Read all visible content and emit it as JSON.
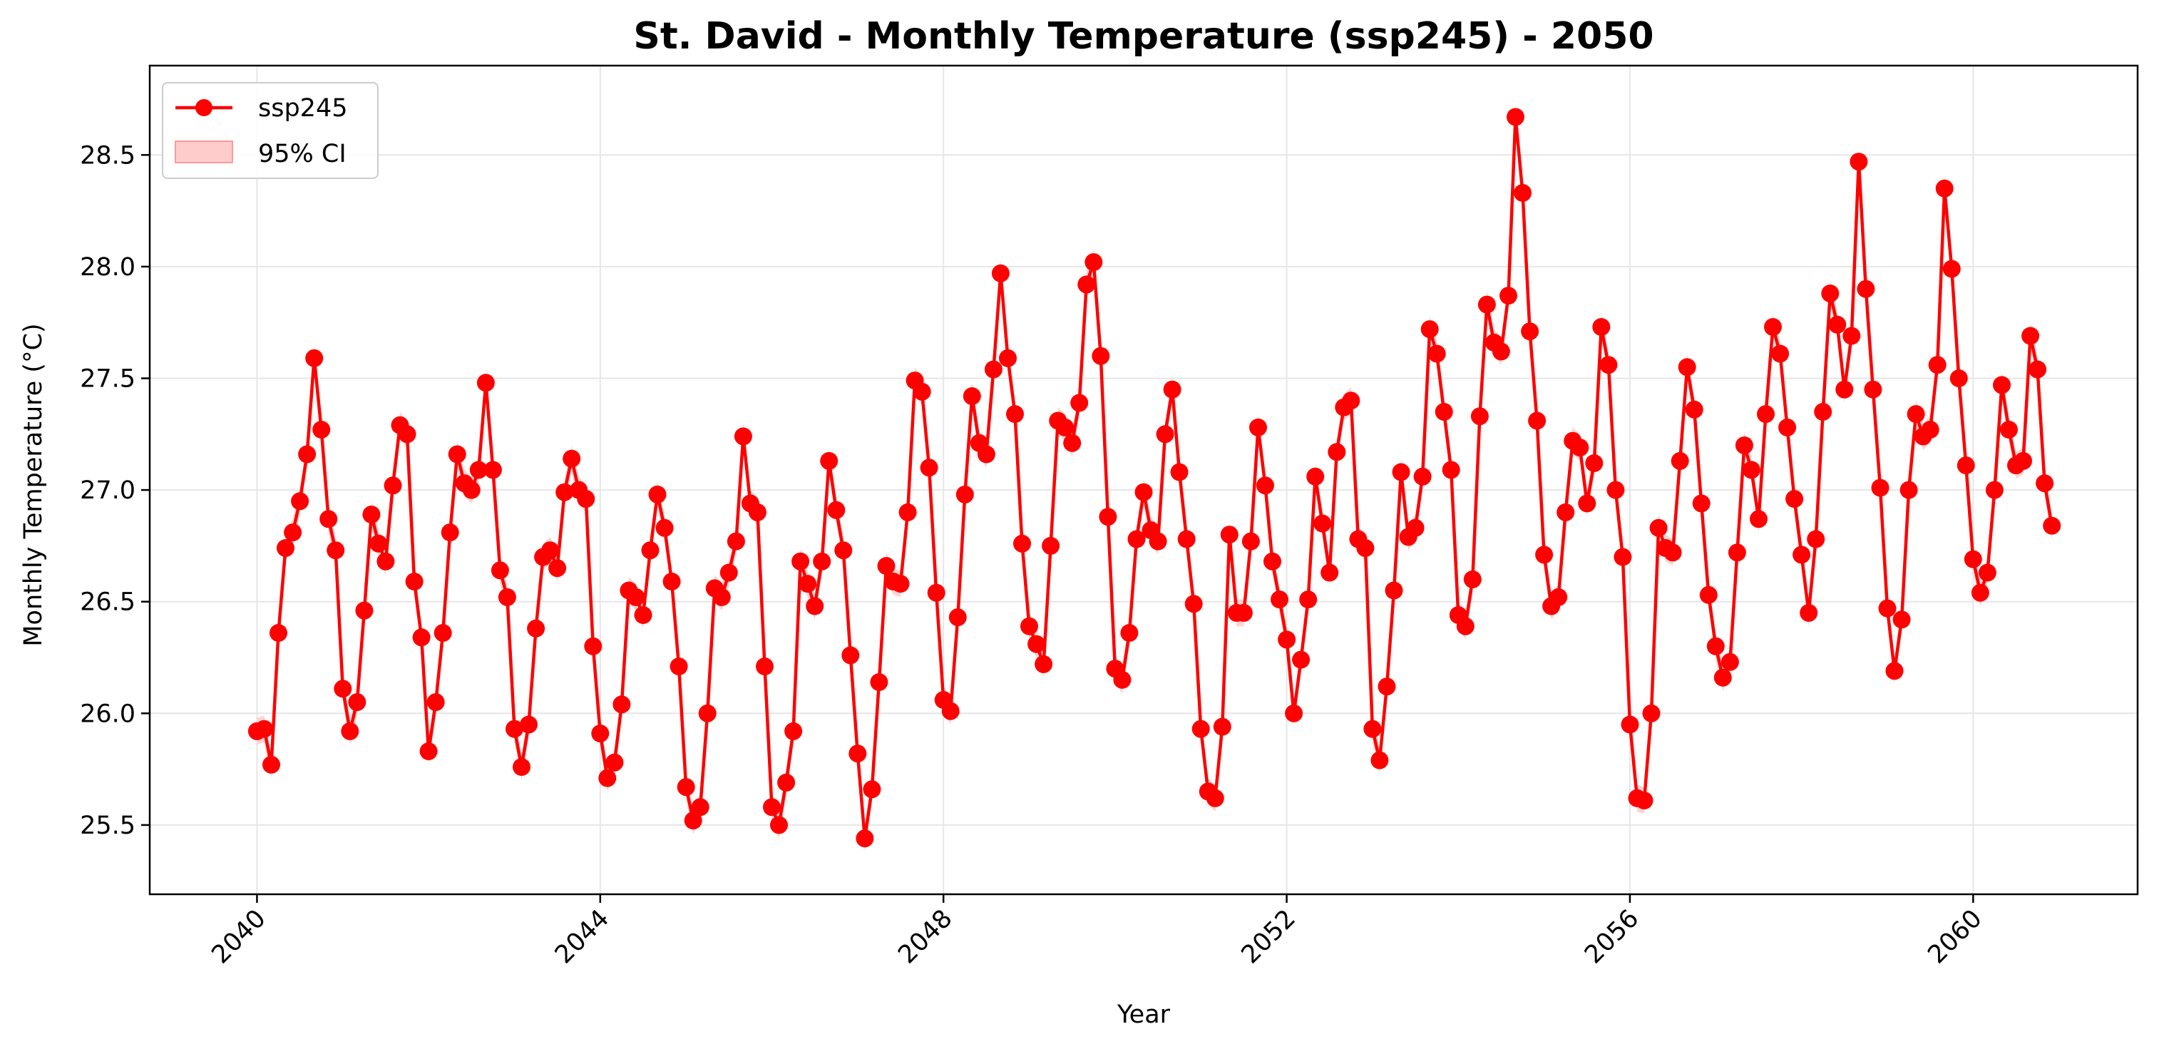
{
  "chart_data": {
    "type": "line",
    "title": "St. David - Monthly Temperature (ssp245) - 2050",
    "xlabel": "Year",
    "ylabel": "Monthly Temperature (°C)",
    "xlim": [
      "2038-10-01",
      "2061-12-01"
    ],
    "ylim": [
      25.19,
      28.9
    ],
    "x_ticks": [
      "2040",
      "2044",
      "2048",
      "2052",
      "2056",
      "2060"
    ],
    "y_ticks": [
      "25.5",
      "26.0",
      "26.5",
      "27.0",
      "27.5",
      "28.0",
      "28.5"
    ],
    "grid": true,
    "legend": {
      "position": "top-left",
      "entries": [
        "ssp245",
        "95% CI"
      ]
    },
    "colors": {
      "line": "#ff0000",
      "ci_fill": "#ffcccc",
      "grid": "#e6e6e6"
    },
    "series": [
      {
        "name": "ssp245",
        "start_month": "2040-01",
        "ci_half_width": 0.06,
        "values": [
          25.92,
          25.93,
          25.77,
          26.36,
          26.74,
          26.81,
          26.95,
          27.16,
          27.59,
          27.27,
          26.87,
          26.73,
          26.11,
          25.92,
          26.05,
          26.46,
          26.89,
          26.76,
          26.68,
          27.02,
          27.29,
          27.25,
          26.59,
          26.34,
          25.83,
          26.05,
          26.36,
          26.81,
          27.16,
          27.03,
          27.0,
          27.09,
          27.48,
          27.09,
          26.64,
          26.52,
          25.93,
          25.76,
          25.95,
          26.38,
          26.7,
          26.73,
          26.65,
          26.99,
          27.14,
          27.0,
          26.96,
          26.3,
          25.91,
          25.71,
          25.78,
          26.04,
          26.55,
          26.52,
          26.44,
          26.73,
          26.98,
          26.83,
          26.59,
          26.21,
          25.67,
          25.52,
          25.58,
          26.0,
          26.56,
          26.52,
          26.63,
          26.77,
          27.24,
          26.94,
          26.9,
          26.21,
          25.58,
          25.5,
          25.69,
          25.92,
          26.68,
          26.58,
          26.48,
          26.68,
          27.13,
          26.91,
          26.73,
          26.26,
          25.82,
          25.44,
          25.66,
          26.14,
          26.66,
          26.59,
          26.58,
          26.9,
          27.49,
          27.44,
          27.1,
          26.54,
          26.06,
          26.01,
          26.43,
          26.98,
          27.42,
          27.21,
          27.16,
          27.54,
          27.97,
          27.59,
          27.34,
          26.76,
          26.39,
          26.31,
          26.22,
          26.75,
          27.31,
          27.28,
          27.21,
          27.39,
          27.92,
          28.02,
          27.6,
          26.88,
          26.2,
          26.15,
          26.36,
          26.78,
          26.99,
          26.82,
          26.77,
          27.25,
          27.45,
          27.08,
          26.78,
          26.49,
          25.93,
          25.65,
          25.62,
          25.94,
          26.8,
          26.45,
          26.45,
          26.77,
          27.28,
          27.02,
          26.68,
          26.51,
          26.33,
          26.0,
          26.24,
          26.51,
          27.06,
          26.85,
          26.63,
          27.17,
          27.37,
          27.4,
          26.78,
          26.74,
          25.93,
          25.79,
          26.12,
          26.55,
          27.08,
          26.79,
          26.83,
          27.06,
          27.72,
          27.61,
          27.35,
          27.09,
          26.44,
          26.39,
          26.6,
          27.33,
          27.83,
          27.66,
          27.62,
          27.87,
          28.67,
          28.33,
          27.71,
          27.31,
          26.71,
          26.48,
          26.52,
          26.9,
          27.22,
          27.19,
          26.94,
          27.12,
          27.73,
          27.56,
          27.0,
          26.7,
          25.95,
          25.62,
          25.61,
          26.0,
          26.83,
          26.74,
          26.72,
          27.13,
          27.55,
          27.36,
          26.94,
          26.53,
          26.3,
          26.16,
          26.23,
          26.72,
          27.2,
          27.09,
          26.87,
          27.34,
          27.73,
          27.61,
          27.28,
          26.96,
          26.71,
          26.45,
          26.78,
          27.35,
          27.88,
          27.74,
          27.45,
          27.69,
          28.47,
          27.9,
          27.45,
          27.01,
          26.47,
          26.19,
          26.42,
          27.0,
          27.34,
          27.24,
          27.27,
          27.56,
          28.35,
          27.99,
          27.5,
          27.11,
          26.69,
          26.54,
          26.63,
          27.0,
          27.47,
          27.27,
          27.11,
          27.13,
          27.69,
          27.54,
          27.03,
          26.84
        ]
      }
    ]
  }
}
